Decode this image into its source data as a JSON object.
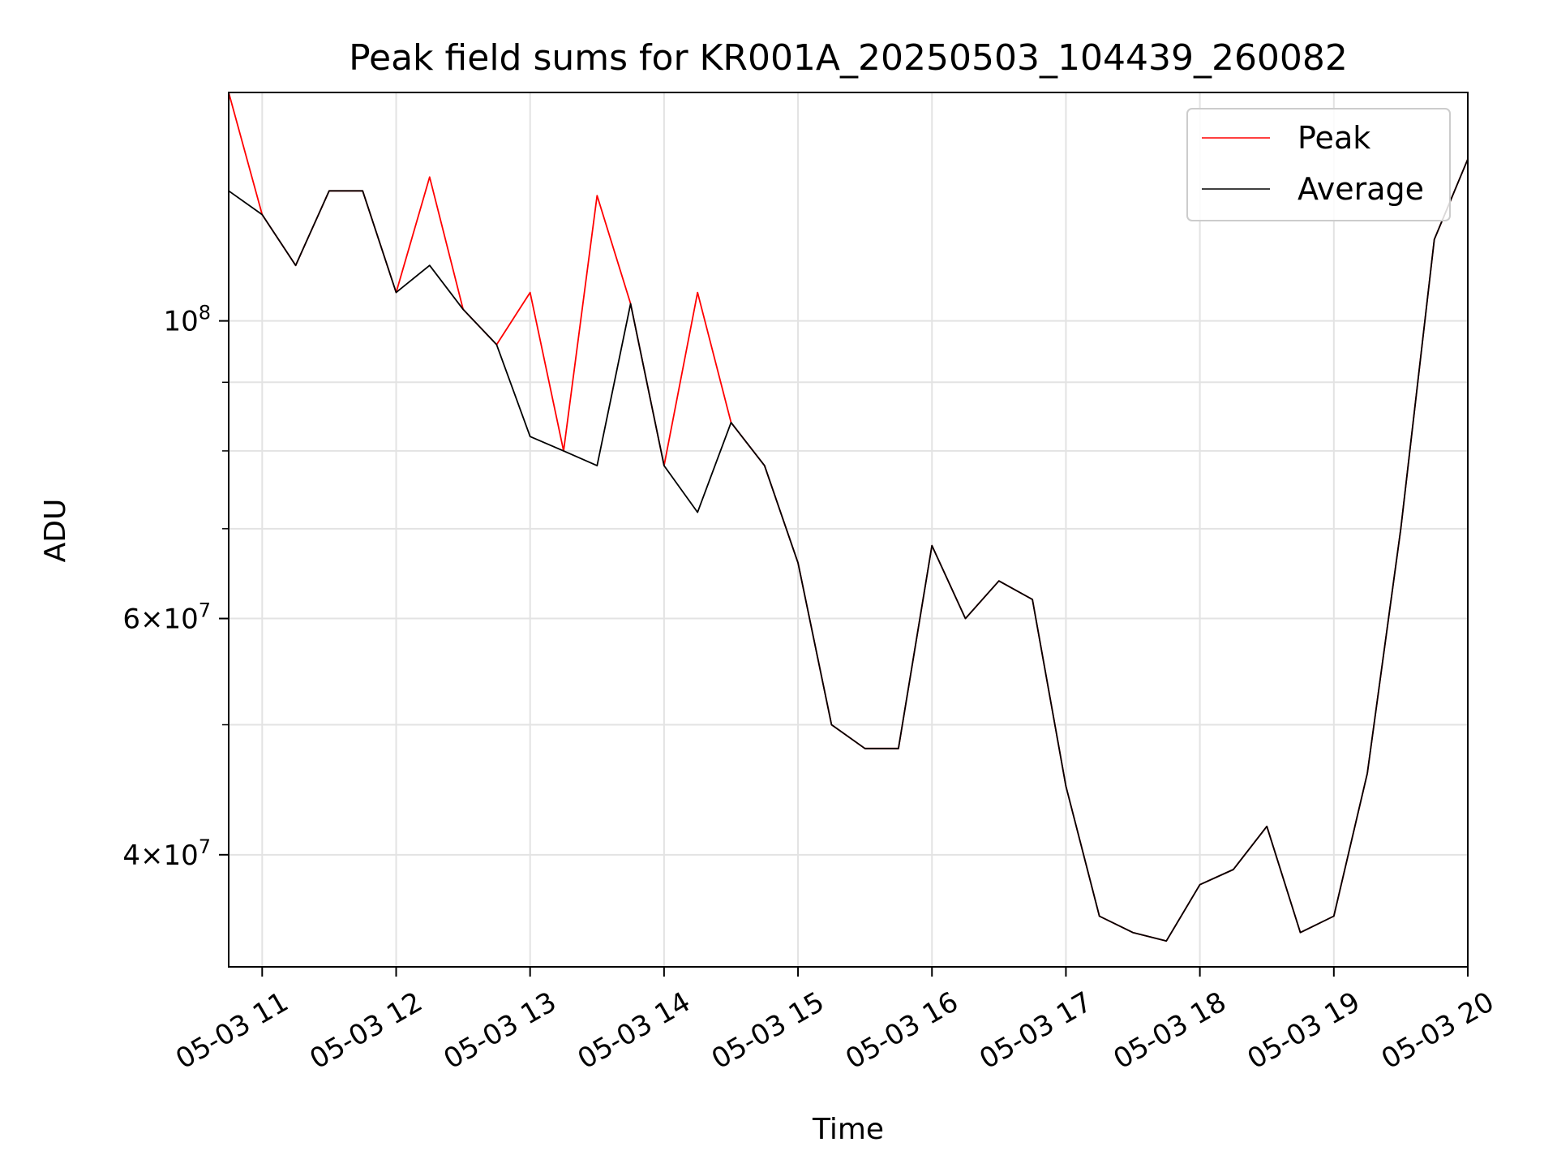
{
  "chart_data": {
    "type": "line",
    "title": "Peak field sums for KR001A_20250503_104439_260082",
    "xlabel": "Time",
    "ylabel": "ADU",
    "yscale": "log",
    "ylim": [
      33000000,
      148000000
    ],
    "xlim": [
      "2025-05-03 10:45",
      "2025-05-03 20:00"
    ],
    "x_tick_labels": [
      "05-03 11",
      "05-03 12",
      "05-03 13",
      "05-03 14",
      "05-03 15",
      "05-03 16",
      "05-03 17",
      "05-03 18",
      "05-03 19",
      "05-03 20"
    ],
    "y_tick_labels": [
      {
        "value": 100000000,
        "base": "10",
        "exp": "8"
      },
      {
        "value": 60000000,
        "base": "6×10",
        "exp": "7"
      },
      {
        "value": 40000000,
        "base": "4×10",
        "exp": "7"
      }
    ],
    "grid": true,
    "legend_position": "upper right",
    "colors": {
      "Peak": "#ff0000",
      "Average": "#000000"
    },
    "series": [
      {
        "name": "Average",
        "x": [
          "2025-05-03 10:45",
          "2025-05-03 11:00",
          "2025-05-03 11:15",
          "2025-05-03 11:30",
          "2025-05-03 11:45",
          "2025-05-03 12:00",
          "2025-05-03 12:15",
          "2025-05-03 12:30",
          "2025-05-03 12:45",
          "2025-05-03 13:00",
          "2025-05-03 13:15",
          "2025-05-03 13:30",
          "2025-05-03 13:45",
          "2025-05-03 14:00",
          "2025-05-03 14:15",
          "2025-05-03 14:30",
          "2025-05-03 14:45",
          "2025-05-03 15:00",
          "2025-05-03 15:15",
          "2025-05-03 15:30",
          "2025-05-03 15:45",
          "2025-05-03 16:00",
          "2025-05-03 16:15",
          "2025-05-03 16:30",
          "2025-05-03 16:45",
          "2025-05-03 17:00",
          "2025-05-03 17:15",
          "2025-05-03 17:30",
          "2025-05-03 17:45",
          "2025-05-03 18:00",
          "2025-05-03 18:15",
          "2025-05-03 18:30",
          "2025-05-03 18:45",
          "2025-05-03 19:00",
          "2025-05-03 19:15",
          "2025-05-03 19:30",
          "2025-05-03 19:45",
          "2025-05-03 20:00"
        ],
        "y": [
          125000000,
          120000000,
          110000000,
          125000000,
          125000000,
          105000000,
          110000000,
          102000000,
          96000000,
          82000000,
          80000000,
          78000000,
          103000000,
          78000000,
          72000000,
          84000000,
          78000000,
          66000000,
          50000000,
          48000000,
          48000000,
          68000000,
          60000000,
          64000000,
          62000000,
          45000000,
          36000000,
          35000000,
          34500000,
          38000000,
          39000000,
          42000000,
          35000000,
          36000000,
          46000000,
          70000000,
          115000000,
          132000000
        ]
      },
      {
        "name": "Peak",
        "x": [
          "2025-05-03 10:45",
          "2025-05-03 11:00",
          "2025-05-03 11:15",
          "2025-05-03 11:30",
          "2025-05-03 11:45",
          "2025-05-03 12:00",
          "2025-05-03 12:15",
          "2025-05-03 12:30",
          "2025-05-03 12:45",
          "2025-05-03 13:00",
          "2025-05-03 13:15",
          "2025-05-03 13:30",
          "2025-05-03 13:45",
          "2025-05-03 14:00",
          "2025-05-03 14:15",
          "2025-05-03 14:30",
          "2025-05-03 14:45",
          "2025-05-03 15:00",
          "2025-05-03 15:15",
          "2025-05-03 15:30",
          "2025-05-03 15:45",
          "2025-05-03 16:00",
          "2025-05-03 16:15",
          "2025-05-03 16:30",
          "2025-05-03 16:45",
          "2025-05-03 17:00",
          "2025-05-03 17:15",
          "2025-05-03 17:30",
          "2025-05-03 17:45",
          "2025-05-03 18:00",
          "2025-05-03 18:15",
          "2025-05-03 18:30",
          "2025-05-03 18:45",
          "2025-05-03 19:00",
          "2025-05-03 19:15",
          "2025-05-03 19:30",
          "2025-05-03 19:45",
          "2025-05-03 20:00"
        ],
        "y": [
          148000000,
          120000000,
          110000000,
          125000000,
          125000000,
          105000000,
          128000000,
          102000000,
          96000000,
          105000000,
          80000000,
          124000000,
          103000000,
          78000000,
          105000000,
          84000000,
          78000000,
          66000000,
          50000000,
          48000000,
          48000000,
          68000000,
          60000000,
          64000000,
          62000000,
          45000000,
          36000000,
          35000000,
          34500000,
          38000000,
          39000000,
          42000000,
          35000000,
          36000000,
          46000000,
          70000000,
          115000000,
          132000000
        ]
      }
    ]
  }
}
